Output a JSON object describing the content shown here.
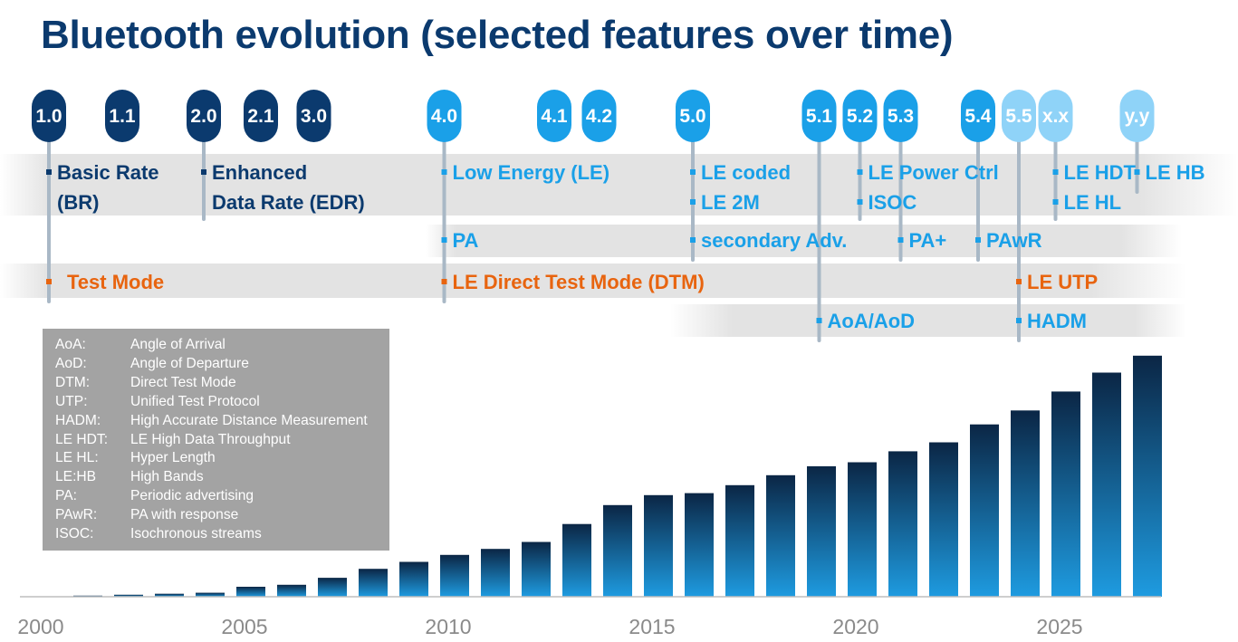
{
  "title": "Bluetooth evolution (selected features over time)",
  "colors": {
    "dark_blue": "#0b3a6e",
    "light_blue": "#1aa0e8",
    "pale_blue": "#8fd3f8",
    "orange": "#e8640f",
    "bar_top": "#0b2645",
    "bar_bottom": "#1e9be0",
    "band": "#e3e3e3",
    "legend_bg": "#a3a3a3"
  },
  "versions": [
    {
      "label": "1.0",
      "year": 2000.2,
      "style": "dark"
    },
    {
      "label": "1.1",
      "year": 2002.0,
      "style": "dark"
    },
    {
      "label": "2.0",
      "year": 2004.0,
      "style": "dark"
    },
    {
      "label": "2.1",
      "year": 2005.4,
      "style": "dark"
    },
    {
      "label": "3.0",
      "year": 2006.7,
      "style": "dark"
    },
    {
      "label": "4.0",
      "year": 2009.9,
      "style": "light"
    },
    {
      "label": "4.1",
      "year": 2012.6,
      "style": "light"
    },
    {
      "label": "4.2",
      "year": 2013.7,
      "style": "light"
    },
    {
      "label": "5.0",
      "year": 2016.0,
      "style": "light"
    },
    {
      "label": "5.1",
      "year": 2019.1,
      "style": "light"
    },
    {
      "label": "5.2",
      "year": 2020.1,
      "style": "light"
    },
    {
      "label": "5.3",
      "year": 2021.1,
      "style": "light"
    },
    {
      "label": "5.4",
      "year": 2023.0,
      "style": "light"
    },
    {
      "label": "5.5",
      "year": 2024.0,
      "style": "pale"
    },
    {
      "label": "x.x",
      "year": 2024.9,
      "style": "pale"
    },
    {
      "label": "y.y",
      "year": 2026.9,
      "style": "pale"
    }
  ],
  "features": [
    {
      "lines": [
        "Basic Rate",
        "(BR)"
      ],
      "row": 1,
      "year": 2000.2,
      "color": "dark"
    },
    {
      "lines": [
        "Enhanced",
        "Data Rate (EDR)"
      ],
      "row": 1,
      "year": 2004.0,
      "color": "dark"
    },
    {
      "lines": [
        "Low Energy (LE)"
      ],
      "row": 1,
      "year": 2009.9,
      "color": "light"
    },
    {
      "lines": [
        "LE coded",
        "LE 2M"
      ],
      "row": 1,
      "year": 2016.0,
      "color": "light"
    },
    {
      "lines": [
        "LE Power Ctrl",
        "ISOC"
      ],
      "row": 1,
      "year": 2020.1,
      "color": "light"
    },
    {
      "lines": [
        "LE HDT",
        "LE HL"
      ],
      "row": 1,
      "year": 2024.9,
      "color": "light"
    },
    {
      "lines": [
        "LE HB"
      ],
      "row": 1,
      "year": 2026.9,
      "color": "light"
    },
    {
      "lines": [
        "PA"
      ],
      "row": 2,
      "year": 2009.9,
      "color": "light"
    },
    {
      "lines": [
        "secondary Adv."
      ],
      "row": 2,
      "year": 2016.0,
      "color": "light"
    },
    {
      "lines": [
        "PA+"
      ],
      "row": 2,
      "year": 2021.1,
      "color": "light"
    },
    {
      "lines": [
        "PAwR"
      ],
      "row": 2,
      "year": 2023.0,
      "color": "light"
    },
    {
      "lines": [
        "Test Mode"
      ],
      "row": 3,
      "year": 2000.2,
      "color": "orange"
    },
    {
      "lines": [
        "LE Direct Test Mode (DTM)"
      ],
      "row": 3,
      "year": 2009.9,
      "color": "orange"
    },
    {
      "lines": [
        "LE UTP"
      ],
      "row": 3,
      "year": 2024.0,
      "color": "orange"
    },
    {
      "lines": [
        "AoA/AoD"
      ],
      "row": 4,
      "year": 2019.1,
      "color": "light"
    },
    {
      "lines": [
        "HADM"
      ],
      "row": 4,
      "year": 2024.0,
      "color": "light"
    }
  ],
  "legend": [
    {
      "abbr": "AoA:",
      "text": "Angle of Arrival"
    },
    {
      "abbr": "AoD:",
      "text": "Angle of Departure"
    },
    {
      "abbr": "DTM:",
      "text": "Direct Test Mode"
    },
    {
      "abbr": "UTP:",
      "text": "Unified Test Protocol"
    },
    {
      "abbr": "HADM:",
      "text": "High Accurate Distance Measurement"
    },
    {
      "abbr": "LE HDT:",
      "text": "LE High Data Throughput"
    },
    {
      "abbr": "LE HL:",
      "text": "Hyper Length"
    },
    {
      "abbr": "LE:HB",
      "text": "High Bands"
    },
    {
      "abbr": "PA:",
      "text": "Periodic advertising"
    },
    {
      "abbr": "PAwR:",
      "text": "PA with response"
    },
    {
      "abbr": "ISOC:",
      "text": "Isochronous streams"
    }
  ],
  "chart_data": {
    "type": "bar",
    "title": "",
    "xlabel": "",
    "ylabel": "",
    "x_ticks": [
      "2000",
      "2005",
      "2010",
      "2015",
      "2020",
      "2025"
    ],
    "xlim": [
      2000,
      2028
    ],
    "ylim": [
      0,
      270
    ],
    "grid": false,
    "categories": [
      "2001",
      "2002",
      "2003",
      "2004",
      "2005",
      "2006",
      "2007",
      "2008",
      "2009",
      "2010",
      "2011",
      "2012",
      "2013",
      "2014",
      "2015",
      "2016",
      "2017",
      "2018",
      "2019",
      "2020",
      "2021",
      "2022",
      "2023",
      "2024",
      "2025",
      "2026",
      "2027"
    ],
    "values": [
      1,
      2,
      3,
      4,
      10,
      12,
      19,
      28,
      35,
      42,
      48,
      55,
      73,
      92,
      102,
      104,
      112,
      122,
      131,
      135,
      146,
      155,
      173,
      187,
      206,
      225,
      242
    ]
  }
}
